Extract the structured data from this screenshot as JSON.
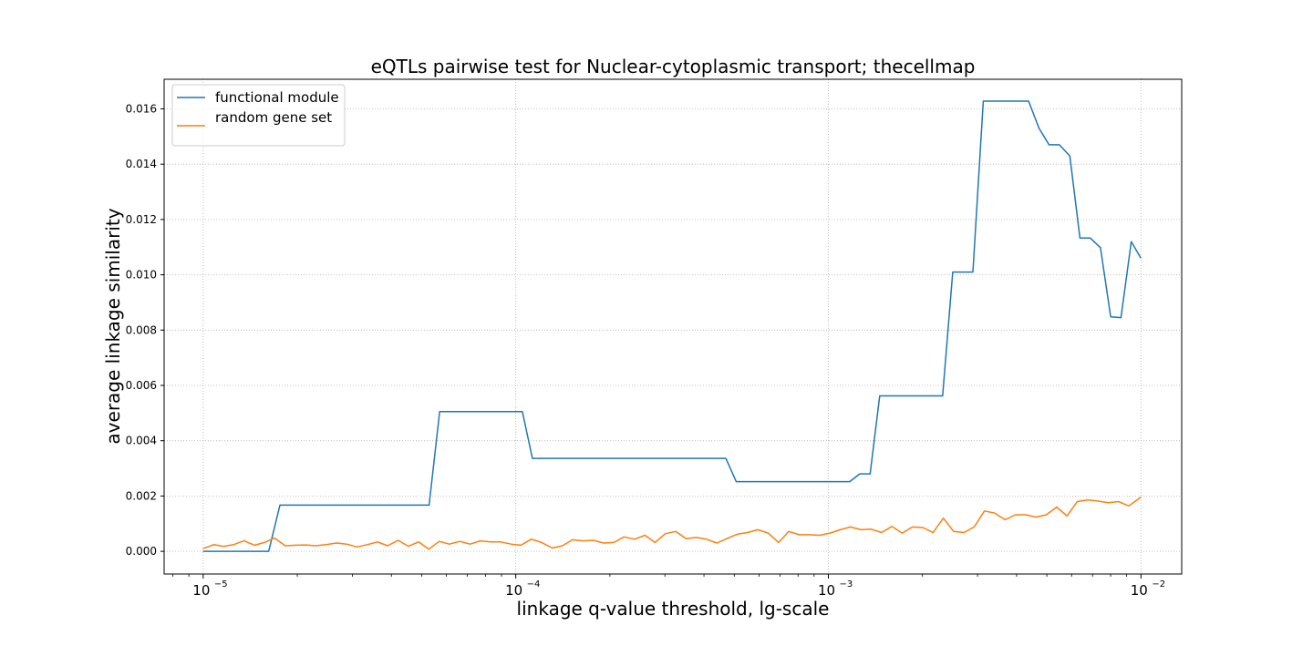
{
  "chart_data": {
    "type": "line",
    "title": "eQTLs pairwise test for Nuclear-cytoplasmic transport; thecellmap",
    "xlabel": "linkage q-value threshold, lg-scale",
    "ylabel": "average linkage similarity",
    "xscale": "log",
    "xlim": [
      7.5e-06,
      0.0135
    ],
    "ylim": [
      -0.00082,
      0.01707
    ],
    "grid": true,
    "legend_position": "upper-left",
    "xticks": [
      {
        "value": 1e-05,
        "base": "10",
        "exp": "−5"
      },
      {
        "value": 0.0001,
        "base": "10",
        "exp": "−4"
      },
      {
        "value": 0.001,
        "base": "10",
        "exp": "−3"
      },
      {
        "value": 0.01,
        "base": "10",
        "exp": "−2"
      }
    ],
    "yticks": [
      "0.000",
      "0.002",
      "0.004",
      "0.006",
      "0.008",
      "0.010",
      "0.012",
      "0.014",
      "0.016"
    ],
    "series": [
      {
        "name": "functional module",
        "color": "#1f77b4",
        "points": [
          [
            1e-05,
            0.0
          ],
          [
            1.62e-05,
            0.0
          ],
          [
            1.76e-05,
            0.00167
          ],
          [
            5.28e-05,
            0.00167
          ],
          [
            5.71e-05,
            0.00505
          ],
          [
            0.000105,
            0.00505
          ],
          [
            0.000113,
            0.00336
          ],
          [
            0.00047,
            0.00336
          ],
          [
            0.000507,
            0.00252
          ],
          [
            0.00117,
            0.00252
          ],
          [
            0.00126,
            0.0028
          ],
          [
            0.00136,
            0.0028
          ],
          [
            0.00146,
            0.00562
          ],
          [
            0.00232,
            0.00562
          ],
          [
            0.0025,
            0.0101
          ],
          [
            0.0029,
            0.0101
          ],
          [
            0.00313,
            0.01628
          ],
          [
            0.00437,
            0.01628
          ],
          [
            0.00472,
            0.0153
          ],
          [
            0.00508,
            0.0147
          ],
          [
            0.00548,
            0.0147
          ],
          [
            0.00592,
            0.0143
          ],
          [
            0.00638,
            0.01133
          ],
          [
            0.00688,
            0.01133
          ],
          [
            0.00742,
            0.01098
          ],
          [
            0.008,
            0.00848
          ],
          [
            0.00863,
            0.00845
          ],
          [
            0.00931,
            0.0112
          ],
          [
            0.01,
            0.0106
          ]
        ]
      },
      {
        "name": "random gene set",
        "color": "#ff7f0e",
        "points": [
          [
            1e-05,
            0.0001
          ],
          [
            1.08e-05,
            0.00024
          ],
          [
            1.16e-05,
            0.00018
          ],
          [
            1.25e-05,
            0.00024
          ],
          [
            1.35e-05,
            0.00038
          ],
          [
            1.46e-05,
            0.00022
          ],
          [
            1.57e-05,
            0.00032
          ],
          [
            1.69e-05,
            0.00048
          ],
          [
            1.83e-05,
            0.0002
          ],
          [
            1.97e-05,
            0.00022
          ],
          [
            2.13e-05,
            0.00023
          ],
          [
            2.29e-05,
            0.0002
          ],
          [
            2.47e-05,
            0.00024
          ],
          [
            2.67e-05,
            0.0003
          ],
          [
            2.88e-05,
            0.00026
          ],
          [
            3.1e-05,
            0.00016
          ],
          [
            3.35e-05,
            0.00024
          ],
          [
            3.61e-05,
            0.00034
          ],
          [
            3.89e-05,
            0.0002
          ],
          [
            4.2e-05,
            0.0004
          ],
          [
            4.53e-05,
            0.00018
          ],
          [
            4.89e-05,
            0.00034
          ],
          [
            5.27e-05,
            8e-05
          ],
          [
            5.69e-05,
            0.00036
          ],
          [
            6.13e-05,
            0.00026
          ],
          [
            6.62e-05,
            0.00036
          ],
          [
            7.14e-05,
            0.00026
          ],
          [
            7.7e-05,
            0.00038
          ],
          [
            8.3e-05,
            0.00034
          ],
          [
            8.95e-05,
            0.00034
          ],
          [
            9.66e-05,
            0.00026
          ],
          [
            0.000104,
            0.00022
          ],
          [
            0.000112,
            0.00044
          ],
          [
            0.000121,
            0.00032
          ],
          [
            0.000131,
            0.00012
          ],
          [
            0.000141,
            0.0002
          ],
          [
            0.000152,
            0.00042
          ],
          [
            0.000164,
            0.00038
          ],
          [
            0.000177,
            0.0004
          ],
          [
            0.000191,
            0.0003
          ],
          [
            0.000206,
            0.00032
          ],
          [
            0.000222,
            0.00052
          ],
          [
            0.00024,
            0.00044
          ],
          [
            0.000259,
            0.00058
          ],
          [
            0.000279,
            0.00032
          ],
          [
            0.000301,
            0.00064
          ],
          [
            0.000325,
            0.00072
          ],
          [
            0.00035,
            0.00046
          ],
          [
            0.000378,
            0.0005
          ],
          [
            0.000407,
            0.00044
          ],
          [
            0.00044,
            0.0003
          ],
          [
            0.000474,
            0.00046
          ],
          [
            0.000511,
            0.00062
          ],
          [
            0.000552,
            0.00068
          ],
          [
            0.000595,
            0.00078
          ],
          [
            0.000642,
            0.00066
          ],
          [
            0.000693,
            0.00032
          ],
          [
            0.000747,
            0.00072
          ],
          [
            0.000806,
            0.0006
          ],
          [
            0.00087,
            0.0006
          ],
          [
            0.000938,
            0.00058
          ],
          [
            0.001012,
            0.00066
          ],
          [
            0.001092,
            0.00078
          ],
          [
            0.001178,
            0.00088
          ],
          [
            0.001271,
            0.00078
          ],
          [
            0.001371,
            0.0008
          ],
          [
            0.001479,
            0.00068
          ],
          [
            0.001596,
            0.0009
          ],
          [
            0.001722,
            0.00066
          ],
          [
            0.001857,
            0.00088
          ],
          [
            0.002004,
            0.00086
          ],
          [
            0.002162,
            0.00068
          ],
          [
            0.002332,
            0.0012
          ],
          [
            0.002516,
            0.00072
          ],
          [
            0.002714,
            0.00068
          ],
          [
            0.002928,
            0.00088
          ],
          [
            0.003159,
            0.00146
          ],
          [
            0.003409,
            0.00138
          ],
          [
            0.003677,
            0.00114
          ],
          [
            0.003967,
            0.00132
          ],
          [
            0.00428,
            0.00132
          ],
          [
            0.004618,
            0.00124
          ],
          [
            0.004982,
            0.00132
          ],
          [
            0.005375,
            0.0016
          ],
          [
            0.005799,
            0.00128
          ],
          [
            0.006256,
            0.0018
          ],
          [
            0.006749,
            0.00186
          ],
          [
            0.007282,
            0.00182
          ],
          [
            0.007856,
            0.00176
          ],
          [
            0.008476,
            0.0018
          ],
          [
            0.009144,
            0.00164
          ],
          [
            0.01,
            0.00196
          ]
        ]
      }
    ]
  }
}
